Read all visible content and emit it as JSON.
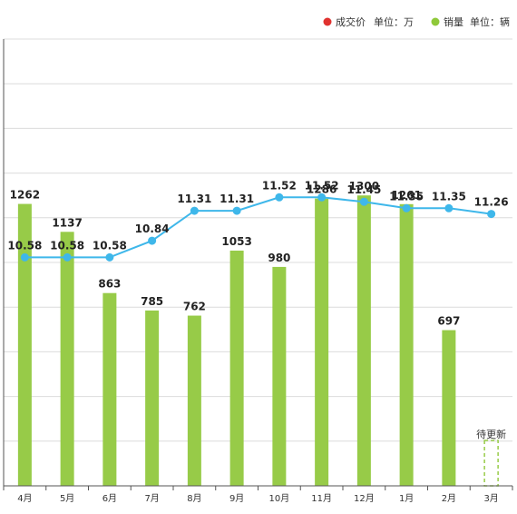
{
  "legend": [
    {
      "name": "成交价",
      "unit_text": "单位：万",
      "color": "#e0322f"
    },
    {
      "name": "销量",
      "unit_text": "单位：辆",
      "color": "#8fc93a"
    }
  ],
  "chart_data": {
    "type": "bar+line",
    "categories": [
      "4月",
      "5月",
      "6月",
      "7月",
      "8月",
      "9月",
      "10月",
      "11月",
      "12月",
      "1月",
      "2月",
      "3月"
    ],
    "series": [
      {
        "name": "销量",
        "type": "bar",
        "color": "#97cb48",
        "values": [
          1262,
          1137,
          863,
          785,
          762,
          1053,
          980,
          1286,
          1300,
          1261,
          697,
          null
        ]
      },
      {
        "name": "成交价",
        "type": "line",
        "color": "#3eb7ea",
        "values": [
          10.58,
          10.58,
          10.58,
          10.84,
          11.31,
          11.31,
          11.52,
          11.52,
          11.45,
          11.35,
          11.35,
          11.26
        ]
      }
    ],
    "bar_labels": [
      "1262",
      "1137",
      "863",
      "785",
      "762",
      "1053",
      "980",
      "1286",
      "1300",
      "1261",
      "697"
    ],
    "line_labels": [
      "10.58",
      "10.58",
      "10.58",
      "10.84",
      "11.31",
      "11.31",
      "11.52",
      "11.52",
      "11.45",
      "11.35",
      "11.35",
      "11.26"
    ],
    "pending_label": "待更新",
    "grid": true,
    "legend_position": "top-right"
  }
}
